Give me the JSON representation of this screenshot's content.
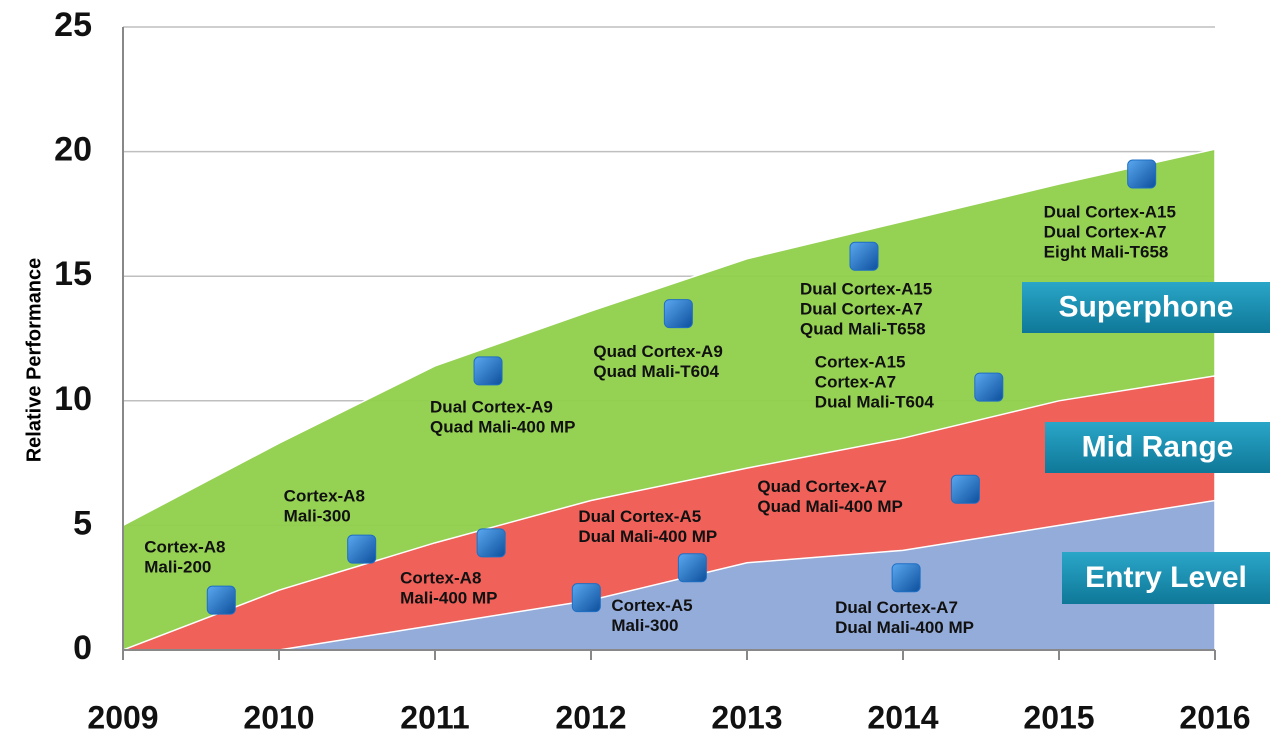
{
  "chart_data": {
    "type": "area",
    "ylabel": "Relative Performance",
    "x": [
      2009,
      2010,
      2011,
      2012,
      2013,
      2014,
      2015,
      2016
    ],
    "xlim": [
      2009,
      2016
    ],
    "xticks": [
      2009,
      2010,
      2011,
      2012,
      2013,
      2014,
      2015,
      2016
    ],
    "ylim": [
      0,
      25
    ],
    "yticks": [
      0,
      5,
      10,
      15,
      20,
      25
    ],
    "grid": true,
    "series": [
      {
        "name": "Superphone",
        "color": "#8fcf4a",
        "values": [
          5,
          8.3,
          11.4,
          13.6,
          15.7,
          17.2,
          18.7,
          20.1
        ]
      },
      {
        "name": "Mid Range",
        "color": "#f45b5b",
        "values": [
          0,
          2.4,
          4.3,
          6,
          7.3,
          8.5,
          10,
          11
        ]
      },
      {
        "name": "Entry Level",
        "color": "#8eb0e2",
        "values": [
          0,
          0,
          1,
          2,
          3.5,
          4,
          5,
          6
        ]
      }
    ],
    "points": {
      "color": "#1f6fc4",
      "x": [
        2009.63,
        2010.53,
        2011.34,
        2011.36,
        2011.97,
        2012.56,
        2012.65,
        2013.75,
        2014.02,
        2014.4,
        2014.55,
        2015.53
      ],
      "y": [
        2.0,
        4.05,
        11.2,
        4.3,
        2.1,
        13.5,
        3.3,
        15.8,
        2.9,
        6.45,
        10.55,
        19.1
      ],
      "labels": [
        [
          "Cortex-A8",
          "Mali-200"
        ],
        [
          "Cortex-A8",
          "Mali-300"
        ],
        [
          "Dual Cortex-A9",
          "Quad Mali-400 MP"
        ],
        [
          "Cortex-A8",
          "Mali-400 MP"
        ],
        [
          "Cortex-A5",
          "Mali-300"
        ],
        [
          "Quad Cortex-A9",
          "Quad Mali-T604"
        ],
        [
          "Dual Cortex-A5",
          "Dual Mali-400 MP"
        ],
        [
          "Dual Cortex-A15",
          "Dual Cortex-A7",
          "Quad Mali-T658"
        ],
        [
          "Dual Cortex-A7",
          "Dual Mali-400 MP"
        ],
        [
          "Quad Cortex-A7",
          "Quad Mali-400 MP"
        ],
        [
          "Cortex-A15",
          "Cortex-A7",
          "Dual Mali-T604"
        ],
        [
          "Dual Cortex-A15",
          "Dual Cortex-A7",
          "Eight Mali-T658"
        ]
      ]
    }
  }
}
